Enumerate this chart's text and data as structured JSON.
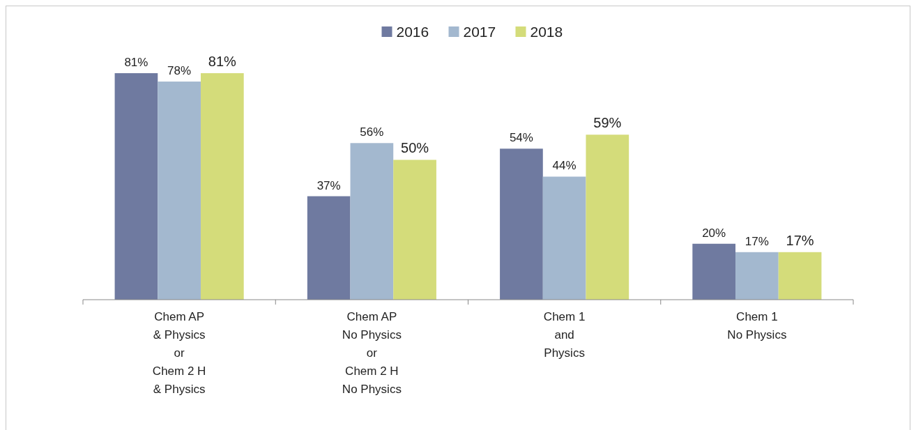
{
  "chart_data": {
    "type": "bar",
    "categories": [
      "Chem AP\n& Physics\nor\nChem 2 H\n& Physics",
      "Chem AP\nNo Physics\nor\nChem 2 H\nNo Physics",
      "Chem 1\nand\nPhysics",
      "Chem 1\nNo Physics"
    ],
    "series": [
      {
        "name": "2016",
        "color": "#6f7aa0",
        "values": [
          81,
          37,
          54,
          20
        ],
        "value_labels": [
          "81%",
          "37%",
          "54%",
          "20%"
        ]
      },
      {
        "name": "2017",
        "color": "#a3b8cf",
        "values": [
          78,
          56,
          44,
          17
        ],
        "value_labels": [
          "78%",
          "56%",
          "44%",
          "17%"
        ]
      },
      {
        "name": "2018",
        "color": "#d4dc7a",
        "values": [
          81,
          50,
          59,
          17
        ],
        "value_labels": [
          "81%",
          "50%",
          "59%",
          "17%"
        ]
      }
    ],
    "legend": "top",
    "grid": false
  }
}
